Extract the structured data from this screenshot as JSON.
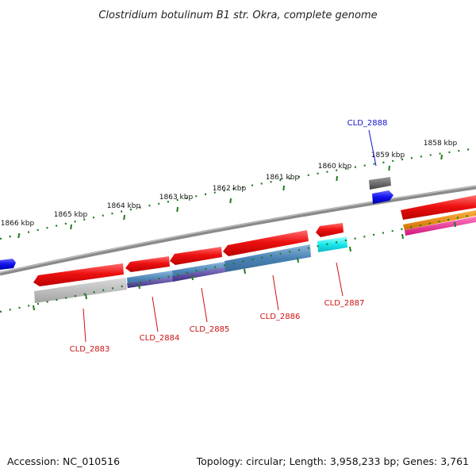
{
  "title": "Clostridium botulinum B1 str. Okra, complete genome",
  "accession_text": "Accession: NC_010516",
  "summary_text": "Topology: circular; Length: 3,958,233 bp; Genes: 3,761",
  "colors": {
    "backbone": "#8a8a8a",
    "tick": "#1e7a1e",
    "cds": "#ee1111",
    "gene_label_reverse": "#cc1111",
    "gene_label_forward": "#1111cc",
    "cog_blue": "#4a82b4",
    "cog_purple": "#5b4a9c",
    "cog_gray": "#b4b4b4",
    "cog_cyan": "#18e8ee",
    "cog_dark_gray": "#6a6a6a",
    "forward_cds_blue": "#1111ee",
    "cog_orange": "#f08a00",
    "cog_magenta": "#f0269a"
  },
  "kbp_labels": [
    "1866 kbp",
    "1865 kbp",
    "1864 kbp",
    "1863 kbp",
    "1862 kbp",
    "1861 kbp",
    "1860 kbp",
    "1859 kbp",
    "1858 kbp"
  ],
  "gene_labels": [
    "CLD_2883",
    "CLD_2884",
    "CLD_2885",
    "CLD_2886",
    "CLD_2887",
    "CLD_2888"
  ]
}
